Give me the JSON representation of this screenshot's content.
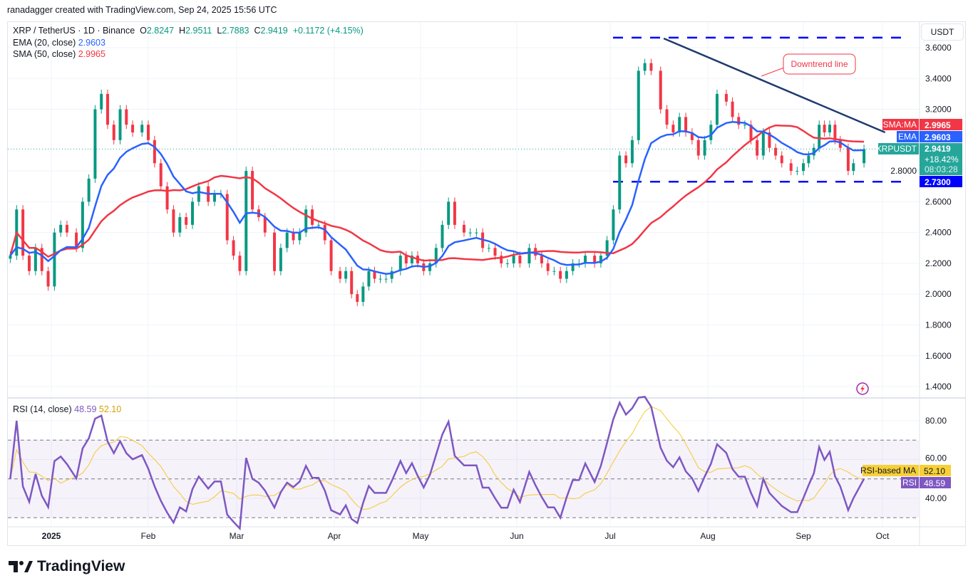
{
  "credit": "ranadagger created with TradingView.com, Sep 24, 2025 15:56 UTC",
  "legend": {
    "symbol": "XRP / TetherUS · 1D · Binance",
    "o_label": "O",
    "o": "2.8247",
    "h_label": "H",
    "h": "2.9511",
    "l_label": "L",
    "l": "2.7883",
    "c_label": "C",
    "c": "2.9419",
    "change": "+0.1172 (+4.15%)",
    "ema_label": "EMA (20, close)",
    "ema_value": "2.9603",
    "sma_label": "SMA (50, close)",
    "sma_value": "2.9965",
    "rsi_label": "RSI (14, close)",
    "rsi_value": "48.59",
    "rsi_ma_value": "52.10"
  },
  "currency_button": "USDT",
  "price_axis": {
    "ticks": [
      "3.6000",
      "3.4000",
      "3.2000",
      "2.8000",
      "2.6000",
      "2.4000",
      "2.2000",
      "2.0000",
      "1.8000",
      "1.6000",
      "1.4000"
    ]
  },
  "rsi_axis": {
    "ticks": [
      "80.00",
      "60.00",
      "40.00"
    ]
  },
  "price_labels": {
    "sma_tag": "SMA:MA",
    "sma_value": "2.9965",
    "ema_tag": "EMA",
    "ema_value": "2.9603",
    "symbol_tag": "XRPUSDT",
    "last_price": "2.9419",
    "last_change": "+18.42%",
    "countdown": "08:03:28",
    "support_value": "2.7300",
    "rsi_ma_tag": "RSI-based MA",
    "rsi_ma_value": "52.10",
    "rsi_tag": "RSI",
    "rsi_value": "48.59"
  },
  "annotations": {
    "downtrend_label": "Downtrend line"
  },
  "brand": "TradingView",
  "colors": {
    "up": "#089981",
    "down": "#f23645",
    "ema": "#2962ff",
    "sma": "#f23645",
    "rsi": "#7e57c2",
    "rsi_ma": "#f7c830",
    "level_line": "#0000ff",
    "trendline": "#1e3a6e",
    "last_price": "#26a69a"
  },
  "chart_data": {
    "type": "candlestick",
    "symbol": "XRPUSDT",
    "interval": "1D",
    "ylim": [
      1.3,
      3.7
    ],
    "time_axis": [
      {
        "label": "2025",
        "date": "2025-01-01"
      },
      {
        "label": "Feb",
        "date": "2025-02-01"
      },
      {
        "label": "Mar",
        "date": "2025-03-01"
      },
      {
        "label": "Apr",
        "date": "2025-04-01"
      },
      {
        "label": "May",
        "date": "2025-05-01"
      },
      {
        "label": "Jun",
        "date": "2025-06-01"
      },
      {
        "label": "Jul",
        "date": "2025-07-01"
      },
      {
        "label": "Aug",
        "date": "2025-08-01"
      },
      {
        "label": "Sep",
        "date": "2025-09-01"
      },
      {
        "label": "Oct",
        "date": "2025-10-01"
      }
    ],
    "dates": [
      "2024-12-19",
      "2024-12-21",
      "2024-12-23",
      "2024-12-25",
      "2024-12-27",
      "2024-12-29",
      "2024-12-31",
      "2025-01-02",
      "2025-01-04",
      "2025-01-06",
      "2025-01-09",
      "2025-01-11",
      "2025-01-13",
      "2025-01-15",
      "2025-01-17",
      "2025-01-19",
      "2025-01-21",
      "2025-01-23",
      "2025-01-25",
      "2025-01-27",
      "2025-01-30",
      "2025-02-01",
      "2025-02-03",
      "2025-02-05",
      "2025-02-07",
      "2025-02-09",
      "2025-02-11",
      "2025-02-13",
      "2025-02-15",
      "2025-02-17",
      "2025-02-20",
      "2025-02-22",
      "2025-02-24",
      "2025-02-26",
      "2025-02-28",
      "2025-03-02",
      "2025-03-04",
      "2025-03-06",
      "2025-03-08",
      "2025-03-10",
      "2025-03-13",
      "2025-03-15",
      "2025-03-17",
      "2025-03-19",
      "2025-03-21",
      "2025-03-23",
      "2025-03-25",
      "2025-03-27",
      "2025-03-29",
      "2025-03-31",
      "2025-04-03",
      "2025-04-05",
      "2025-04-07",
      "2025-04-09",
      "2025-04-11",
      "2025-04-13",
      "2025-04-15",
      "2025-04-17",
      "2025-04-19",
      "2025-04-21",
      "2025-04-24",
      "2025-04-26",
      "2025-04-28",
      "2025-04-30",
      "2025-05-02",
      "2025-05-04",
      "2025-05-06",
      "2025-05-08",
      "2025-05-10",
      "2025-05-12",
      "2025-05-15",
      "2025-05-17",
      "2025-05-19",
      "2025-05-21",
      "2025-05-23",
      "2025-05-25",
      "2025-05-27",
      "2025-05-29",
      "2025-05-31",
      "2025-06-02",
      "2025-06-05",
      "2025-06-07",
      "2025-06-09",
      "2025-06-11",
      "2025-06-13",
      "2025-06-15",
      "2025-06-17",
      "2025-06-19",
      "2025-06-21",
      "2025-06-23",
      "2025-06-26",
      "2025-06-28",
      "2025-06-30",
      "2025-07-02",
      "2025-07-04",
      "2025-07-06",
      "2025-07-08",
      "2025-07-10",
      "2025-07-12",
      "2025-07-14",
      "2025-07-17",
      "2025-07-19",
      "2025-07-21",
      "2025-07-23",
      "2025-07-25",
      "2025-07-27",
      "2025-07-29",
      "2025-07-31",
      "2025-08-02",
      "2025-08-04",
      "2025-08-07",
      "2025-08-09",
      "2025-08-11",
      "2025-08-13",
      "2025-08-15",
      "2025-08-17",
      "2025-08-19",
      "2025-08-21",
      "2025-08-23",
      "2025-08-25",
      "2025-08-28",
      "2025-08-30",
      "2025-09-01",
      "2025-09-03",
      "2025-09-05",
      "2025-09-07",
      "2025-09-09",
      "2025-09-11",
      "2025-09-13",
      "2025-09-15",
      "2025-09-18",
      "2025-09-20",
      "2025-09-24"
    ],
    "close": [
      2.25,
      2.55,
      2.25,
      2.15,
      2.3,
      2.15,
      2.05,
      2.4,
      2.45,
      2.4,
      2.3,
      2.6,
      2.75,
      3.2,
      3.3,
      3.1,
      3.0,
      3.2,
      3.1,
      3.05,
      3.1,
      3.0,
      2.85,
      2.7,
      2.55,
      2.4,
      2.5,
      2.45,
      2.6,
      2.7,
      2.6,
      2.65,
      2.65,
      2.35,
      2.25,
      2.15,
      2.8,
      2.55,
      2.5,
      2.4,
      2.15,
      2.3,
      2.4,
      2.35,
      2.4,
      2.55,
      2.45,
      2.45,
      2.35,
      2.15,
      2.1,
      2.15,
      2.0,
      1.95,
      2.05,
      2.15,
      2.1,
      2.1,
      2.1,
      2.15,
      2.25,
      2.2,
      2.25,
      2.2,
      2.15,
      2.2,
      2.3,
      2.45,
      2.6,
      2.45,
      2.4,
      2.4,
      2.4,
      2.3,
      2.3,
      2.25,
      2.2,
      2.2,
      2.25,
      2.2,
      2.3,
      2.25,
      2.2,
      2.15,
      2.15,
      2.1,
      2.15,
      2.2,
      2.2,
      2.25,
      2.2,
      2.25,
      2.35,
      2.55,
      2.9,
      2.85,
      3.0,
      3.45,
      3.5,
      3.45,
      3.2,
      3.1,
      3.05,
      3.15,
      3.05,
      3.0,
      2.9,
      3.0,
      3.1,
      3.3,
      3.25,
      3.15,
      3.1,
      3.1,
      3.0,
      2.9,
      3.05,
      2.95,
      2.9,
      2.85,
      2.8,
      2.8,
      2.85,
      2.9,
      2.95,
      3.1,
      3.05,
      3.1,
      3.0,
      2.95,
      2.8,
      2.85,
      2.9419
    ],
    "indicators": {
      "ema_period": 20,
      "sma_period": 50,
      "rsi_period": 14,
      "ema_last": 2.9603,
      "sma_last": 2.9965,
      "rsi_last": 48.59,
      "rsi_ma_last": 52.1,
      "rsi_levels": [
        70,
        50,
        30
      ]
    },
    "horizontal_levels": [
      {
        "price": 3.665,
        "style": "dashed"
      },
      {
        "price": 2.73,
        "style": "dashed"
      }
    ],
    "trendline": {
      "label": "Downtrend line",
      "from": {
        "date": "2025-07-18",
        "price": 3.66
      },
      "to": {
        "date": "2025-10-02",
        "price": 3.05
      }
    },
    "grid": true
  }
}
